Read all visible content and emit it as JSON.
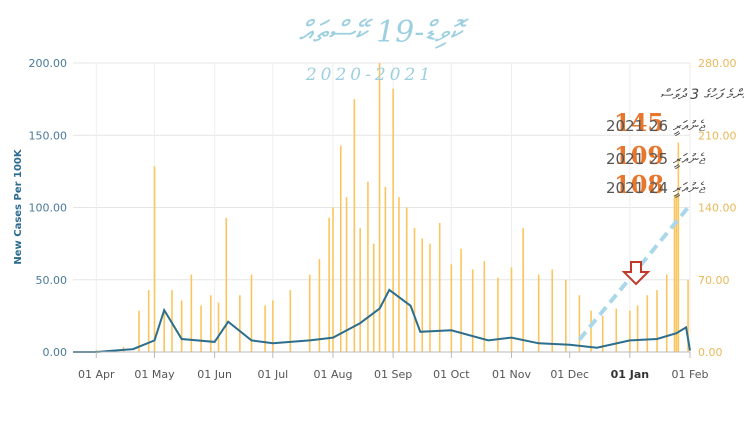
{
  "chart_data": {
    "type": "bar",
    "title": "ކޮވިޑް-19 ކޭސްތައް",
    "subtitle": "2020-2021",
    "ylabel": "New Cases Per 100K",
    "ylim_left": [
      0,
      200
    ],
    "ylim_right": [
      0,
      280
    ],
    "yticks_left": [
      "0.00",
      "50.00",
      "100.00",
      "150.00",
      "200.00"
    ],
    "yticks_right": [
      "0.00",
      "70.00",
      "140.00",
      "210.00",
      "280.00"
    ],
    "xticks": [
      "01 Apr",
      "01 May",
      "01 Jun",
      "01 Jul",
      "01 Aug",
      "01 Sep",
      "01 Oct",
      "01 Nov",
      "01 Dec",
      "01 Jan",
      "01 Feb"
    ],
    "x_start": "2020-03-20",
    "x_end": "2021-02-01",
    "grid": true,
    "colors": {
      "bars": "#fbc55e",
      "line": "#2c6e8c",
      "trend": "#a9d8ea",
      "arrow": "#c0392b",
      "highlight": "#e8762c"
    },
    "series": [
      {
        "axis": "right",
        "x": [
          "2020-04-01",
          "2020-04-15",
          "2020-04-23",
          "2020-04-28",
          "2020-05-01",
          "2020-05-06",
          "2020-05-10",
          "2020-05-15",
          "2020-05-20",
          "2020-05-25",
          "2020-05-30",
          "2020-06-03",
          "2020-06-07",
          "2020-06-14",
          "2020-06-20",
          "2020-06-27",
          "2020-07-01",
          "2020-07-10",
          "2020-07-20",
          "2020-07-25",
          "2020-07-30",
          "2020-08-01",
          "2020-08-05",
          "2020-08-08",
          "2020-08-12",
          "2020-08-15",
          "2020-08-19",
          "2020-08-22",
          "2020-08-25",
          "2020-08-28",
          "2020-09-01",
          "2020-09-04",
          "2020-09-08",
          "2020-09-12",
          "2020-09-16",
          "2020-09-20",
          "2020-09-25",
          "2020-10-01",
          "2020-10-06",
          "2020-10-12",
          "2020-10-18",
          "2020-10-25",
          "2020-11-01",
          "2020-11-07",
          "2020-11-15",
          "2020-11-22",
          "2020-11-29",
          "2020-12-06",
          "2020-12-12",
          "2020-12-18",
          "2020-12-25",
          "2021-01-01",
          "2021-01-05",
          "2021-01-10",
          "2021-01-15",
          "2021-01-20",
          "2021-01-24",
          "2021-01-25",
          "2021-01-26",
          "2021-01-31"
        ],
        "values": [
          2,
          5,
          40,
          60,
          180,
          40,
          60,
          50,
          75,
          45,
          55,
          48,
          130,
          55,
          75,
          45,
          50,
          60,
          75,
          90,
          130,
          140,
          200,
          150,
          245,
          120,
          165,
          105,
          280,
          160,
          255,
          150,
          140,
          120,
          110,
          105,
          125,
          85,
          100,
          80,
          88,
          72,
          82,
          120,
          75,
          80,
          70,
          55,
          40,
          35,
          42,
          40,
          45,
          55,
          60,
          75,
          152,
          153,
          203,
          70
        ]
      },
      {
        "axis": "left",
        "x": [
          "2020-03-20",
          "2020-04-01",
          "2020-04-20",
          "2020-05-01",
          "2020-05-06",
          "2020-05-15",
          "2020-06-01",
          "2020-06-08",
          "2020-06-20",
          "2020-07-01",
          "2020-07-20",
          "2020-08-01",
          "2020-08-15",
          "2020-08-25",
          "2020-08-30",
          "2020-09-10",
          "2020-09-15",
          "2020-10-01",
          "2020-10-20",
          "2020-11-01",
          "2020-11-15",
          "2020-12-01",
          "2020-12-15",
          "2021-01-01",
          "2021-01-15",
          "2021-01-25",
          "2021-01-30",
          "2021-02-01"
        ],
        "values": [
          0,
          0,
          2,
          8,
          29,
          9,
          7,
          21,
          8,
          6,
          8,
          10,
          20,
          30,
          43,
          32,
          14,
          15,
          8,
          10,
          6,
          5,
          3,
          8,
          9,
          13,
          17,
          1
        ]
      }
    ],
    "annotation": {
      "header": "އެންމެ ފަހުގެ 3 ދުވަސް",
      "rows": [
        {
          "value": "145",
          "text": "ޖެނުއަރީ 26 2021"
        },
        {
          "value": "109",
          "text": "ޖެނުއަރީ 25 2021"
        },
        {
          "value": "108",
          "text": "ޖެނުއަރީ 24 2021"
        }
      ]
    }
  }
}
